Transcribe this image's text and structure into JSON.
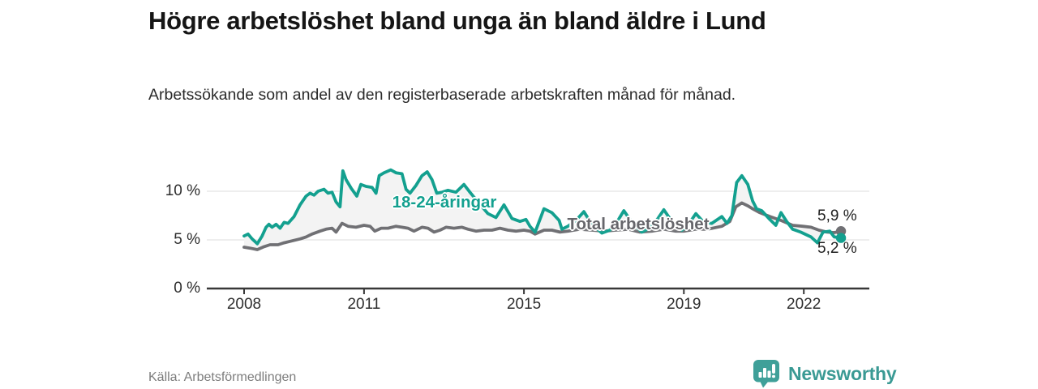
{
  "header": {
    "title": "Högre arbetslöshet bland unga än bland äldre i Lund",
    "subtitle": "Arbetssökande som andel av den registerbaserade arbetskraften månad för månad."
  },
  "footer": {
    "source": "Källa: Arbetsförmedlingen",
    "brand_name": "Newsworthy",
    "brand_color": "#3a9a94",
    "brand_icon": "bar-chart-speech-bubble-icon"
  },
  "chart_data": {
    "type": "line",
    "title": "Högre arbetslöshet bland unga än bland äldre i Lund",
    "xlabel": "",
    "ylabel": "",
    "ylim": [
      0,
      13.4
    ],
    "xlim": [
      2007.07,
      2023.64
    ],
    "grid": "horizontal-only",
    "legend_position": "inline-labels",
    "colors": {
      "grid": "#e4e4e4",
      "axis": "#383838",
      "fill_between": "#f3f3f3"
    },
    "y_ticks": [
      {
        "label": "0 %",
        "value": 0
      },
      {
        "label": "5 %",
        "value": 5
      },
      {
        "label": "10 %",
        "value": 10
      }
    ],
    "x_ticks": [
      {
        "label": "2008",
        "value": 2008
      },
      {
        "label": "2011",
        "value": 2011
      },
      {
        "label": "2015",
        "value": 2015
      },
      {
        "label": "2019",
        "value": 2019
      },
      {
        "label": "2022",
        "value": 2022
      }
    ],
    "series": [
      {
        "name": "Total arbetslöshet",
        "color": "#707074",
        "end_value_label": "5,9 %",
        "points": [
          [
            2008.0,
            4.25
          ],
          [
            2008.15,
            4.15
          ],
          [
            2008.33,
            4.0
          ],
          [
            2008.5,
            4.3
          ],
          [
            2008.65,
            4.5
          ],
          [
            2008.85,
            4.5
          ],
          [
            2009.0,
            4.7
          ],
          [
            2009.2,
            4.9
          ],
          [
            2009.4,
            5.1
          ],
          [
            2009.55,
            5.3
          ],
          [
            2009.7,
            5.6
          ],
          [
            2009.9,
            5.9
          ],
          [
            2010.05,
            6.1
          ],
          [
            2010.2,
            6.2
          ],
          [
            2010.3,
            5.8
          ],
          [
            2010.45,
            6.7
          ],
          [
            2010.6,
            6.4
          ],
          [
            2010.8,
            6.3
          ],
          [
            2011.0,
            6.5
          ],
          [
            2011.15,
            6.4
          ],
          [
            2011.27,
            5.9
          ],
          [
            2011.43,
            6.2
          ],
          [
            2011.6,
            6.2
          ],
          [
            2011.8,
            6.4
          ],
          [
            2011.95,
            6.3
          ],
          [
            2012.1,
            6.2
          ],
          [
            2012.25,
            5.9
          ],
          [
            2012.45,
            6.3
          ],
          [
            2012.6,
            6.2
          ],
          [
            2012.75,
            5.8
          ],
          [
            2012.9,
            6.0
          ],
          [
            2013.05,
            6.3
          ],
          [
            2013.25,
            6.2
          ],
          [
            2013.45,
            6.3
          ],
          [
            2013.6,
            6.1
          ],
          [
            2013.8,
            5.9
          ],
          [
            2014.0,
            6.0
          ],
          [
            2014.2,
            6.0
          ],
          [
            2014.4,
            6.2
          ],
          [
            2014.6,
            6.0
          ],
          [
            2014.8,
            5.9
          ],
          [
            2015.0,
            6.0
          ],
          [
            2015.15,
            5.9
          ],
          [
            2015.28,
            5.6
          ],
          [
            2015.5,
            6.0
          ],
          [
            2015.7,
            6.0
          ],
          [
            2015.9,
            5.8
          ],
          [
            2016.1,
            5.9
          ],
          [
            2016.4,
            6.1
          ],
          [
            2016.7,
            6.0
          ],
          [
            2017.0,
            5.9
          ],
          [
            2017.3,
            6.0
          ],
          [
            2017.6,
            6.1
          ],
          [
            2017.9,
            5.8
          ],
          [
            2018.2,
            5.9
          ],
          [
            2018.5,
            6.1
          ],
          [
            2018.8,
            5.9
          ],
          [
            2019.0,
            5.9
          ],
          [
            2019.3,
            6.1
          ],
          [
            2019.6,
            6.1
          ],
          [
            2019.95,
            6.4
          ],
          [
            2020.15,
            6.9
          ],
          [
            2020.3,
            8.4
          ],
          [
            2020.45,
            8.8
          ],
          [
            2020.6,
            8.5
          ],
          [
            2020.72,
            8.2
          ],
          [
            2020.9,
            7.8
          ],
          [
            2021.15,
            7.4
          ],
          [
            2021.43,
            7.0
          ],
          [
            2021.72,
            6.5
          ],
          [
            2021.97,
            6.4
          ],
          [
            2022.18,
            6.3
          ],
          [
            2022.38,
            6.0
          ],
          [
            2022.58,
            5.8
          ],
          [
            2022.76,
            5.75
          ],
          [
            2022.93,
            5.9
          ]
        ]
      },
      {
        "name": "18-24-åringar",
        "color": "#13a08f",
        "end_value_label": "5,2 %",
        "points": [
          [
            2008.0,
            5.4
          ],
          [
            2008.1,
            5.6
          ],
          [
            2008.2,
            5.1
          ],
          [
            2008.33,
            4.6
          ],
          [
            2008.45,
            5.4
          ],
          [
            2008.55,
            6.3
          ],
          [
            2008.62,
            6.6
          ],
          [
            2008.7,
            6.3
          ],
          [
            2008.8,
            6.6
          ],
          [
            2008.9,
            6.2
          ],
          [
            2009.0,
            6.8
          ],
          [
            2009.1,
            6.7
          ],
          [
            2009.25,
            7.4
          ],
          [
            2009.4,
            8.6
          ],
          [
            2009.55,
            9.5
          ],
          [
            2009.65,
            9.8
          ],
          [
            2009.75,
            9.6
          ],
          [
            2009.85,
            10.0
          ],
          [
            2010.0,
            10.2
          ],
          [
            2010.1,
            9.8
          ],
          [
            2010.2,
            9.9
          ],
          [
            2010.3,
            8.9
          ],
          [
            2010.4,
            8.4
          ],
          [
            2010.47,
            12.1
          ],
          [
            2010.55,
            11.2
          ],
          [
            2010.68,
            10.3
          ],
          [
            2010.82,
            9.5
          ],
          [
            2010.92,
            10.7
          ],
          [
            2011.05,
            10.5
          ],
          [
            2011.2,
            10.4
          ],
          [
            2011.3,
            9.8
          ],
          [
            2011.38,
            11.6
          ],
          [
            2011.5,
            11.9
          ],
          [
            2011.67,
            12.2
          ],
          [
            2011.8,
            11.9
          ],
          [
            2011.95,
            11.8
          ],
          [
            2012.05,
            10.2
          ],
          [
            2012.15,
            9.8
          ],
          [
            2012.3,
            10.6
          ],
          [
            2012.45,
            11.6
          ],
          [
            2012.58,
            12.0
          ],
          [
            2012.7,
            11.2
          ],
          [
            2012.82,
            9.8
          ],
          [
            2012.95,
            9.9
          ],
          [
            2013.1,
            10.1
          ],
          [
            2013.3,
            9.9
          ],
          [
            2013.5,
            10.7
          ],
          [
            2013.65,
            9.9
          ],
          [
            2013.85,
            8.9
          ],
          [
            2014.1,
            7.7
          ],
          [
            2014.3,
            7.3
          ],
          [
            2014.5,
            8.6
          ],
          [
            2014.7,
            7.2
          ],
          [
            2014.9,
            6.9
          ],
          [
            2015.05,
            7.1
          ],
          [
            2015.15,
            6.4
          ],
          [
            2015.28,
            5.8
          ],
          [
            2015.5,
            8.2
          ],
          [
            2015.7,
            7.8
          ],
          [
            2015.88,
            7.0
          ],
          [
            2015.95,
            6.1
          ],
          [
            2016.1,
            6.4
          ],
          [
            2016.3,
            7.0
          ],
          [
            2016.5,
            7.9
          ],
          [
            2016.7,
            6.6
          ],
          [
            2016.95,
            5.7
          ],
          [
            2017.15,
            6.0
          ],
          [
            2017.35,
            7.0
          ],
          [
            2017.5,
            8.0
          ],
          [
            2017.7,
            6.8
          ],
          [
            2017.95,
            5.8
          ],
          [
            2018.15,
            6.2
          ],
          [
            2018.35,
            7.2
          ],
          [
            2018.5,
            8.1
          ],
          [
            2018.7,
            6.9
          ],
          [
            2018.95,
            6.0
          ],
          [
            2019.1,
            6.5
          ],
          [
            2019.3,
            7.7
          ],
          [
            2019.5,
            6.8
          ],
          [
            2019.7,
            6.7
          ],
          [
            2019.95,
            7.4
          ],
          [
            2020.08,
            6.7
          ],
          [
            2020.2,
            7.5
          ],
          [
            2020.32,
            10.9
          ],
          [
            2020.45,
            11.6
          ],
          [
            2020.6,
            10.7
          ],
          [
            2020.72,
            9.0
          ],
          [
            2020.82,
            8.2
          ],
          [
            2020.95,
            8.0
          ],
          [
            2021.15,
            7.1
          ],
          [
            2021.3,
            6.5
          ],
          [
            2021.43,
            7.8
          ],
          [
            2021.57,
            6.9
          ],
          [
            2021.72,
            6.1
          ],
          [
            2021.92,
            5.8
          ],
          [
            2022.18,
            5.3
          ],
          [
            2022.34,
            4.7
          ],
          [
            2022.48,
            5.8
          ],
          [
            2022.65,
            5.9
          ],
          [
            2022.76,
            5.3
          ],
          [
            2022.93,
            5.2
          ]
        ]
      }
    ]
  }
}
